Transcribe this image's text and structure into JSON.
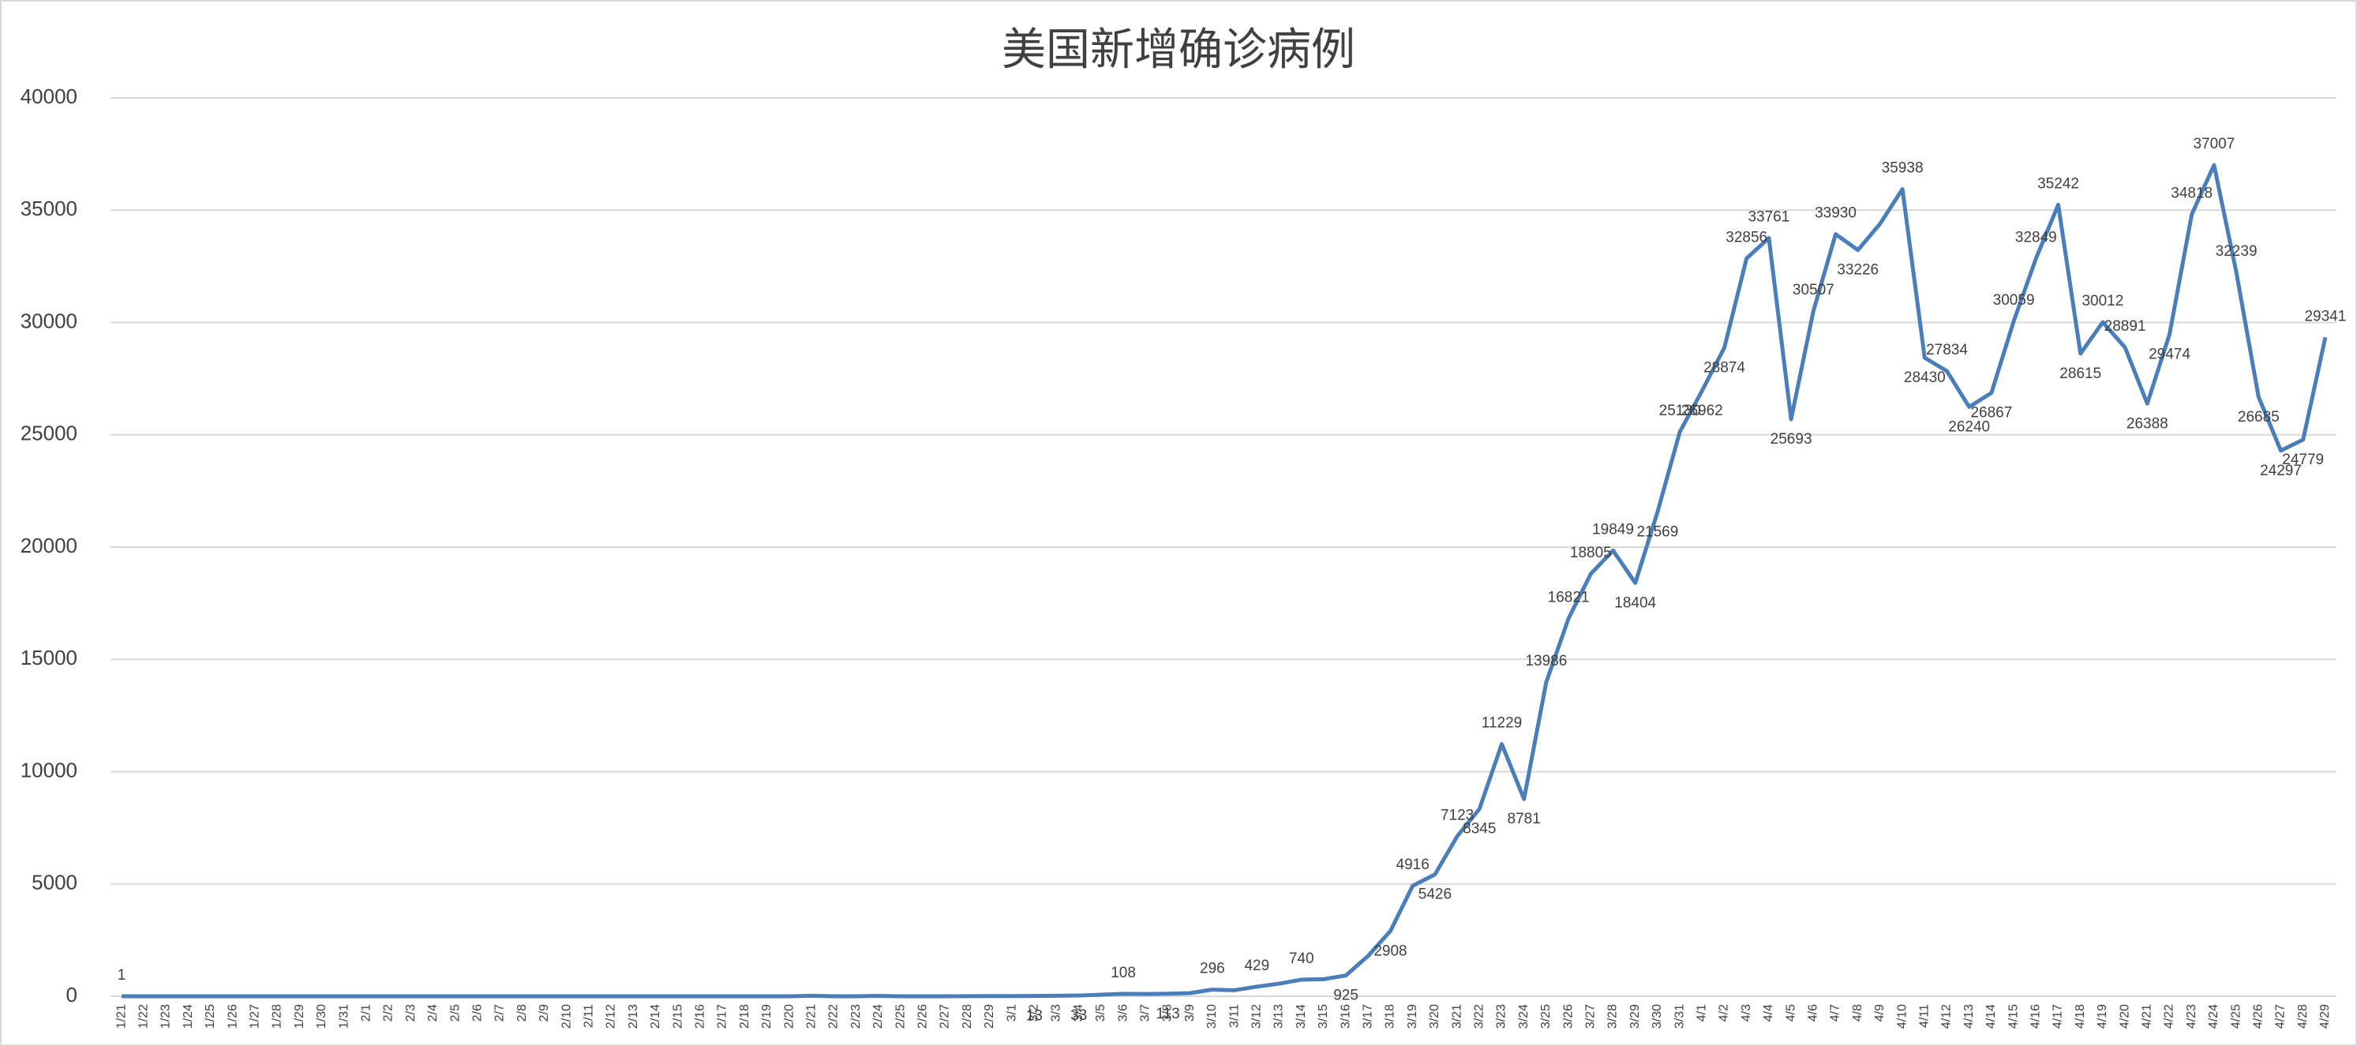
{
  "chart_data": {
    "type": "line",
    "title": "美国新增确诊病例",
    "categories": [
      "1/21",
      "1/22",
      "1/23",
      "1/24",
      "1/25",
      "1/26",
      "1/27",
      "1/28",
      "1/29",
      "1/30",
      "1/31",
      "2/1",
      "2/2",
      "2/3",
      "2/4",
      "2/5",
      "2/6",
      "2/7",
      "2/8",
      "2/9",
      "2/10",
      "2/11",
      "2/12",
      "2/13",
      "2/14",
      "2/15",
      "2/16",
      "2/17",
      "2/18",
      "2/19",
      "2/20",
      "2/21",
      "2/22",
      "2/23",
      "2/24",
      "2/25",
      "2/26",
      "2/27",
      "2/28",
      "2/29",
      "3/1",
      "3/2",
      "3/3",
      "3/4",
      "3/5",
      "3/6",
      "3/7",
      "3/8",
      "3/9",
      "3/10",
      "3/11",
      "3/12",
      "3/13",
      "3/14",
      "3/15",
      "3/16",
      "3/17",
      "3/18",
      "3/19",
      "3/20",
      "3/21",
      "3/22",
      "3/23",
      "3/24",
      "3/25",
      "3/26",
      "3/27",
      "3/28",
      "3/29",
      "3/30",
      "3/31",
      "4/1",
      "4/2",
      "4/3",
      "4/4",
      "4/5",
      "4/6",
      "4/7",
      "4/8",
      "4/9",
      "4/10",
      "4/11",
      "4/12",
      "4/13",
      "4/14",
      "4/15",
      "4/16",
      "4/17",
      "4/18",
      "4/19",
      "4/20",
      "4/21",
      "4/22",
      "4/23",
      "4/24",
      "4/25",
      "4/26",
      "4/27",
      "4/28",
      "4/29"
    ],
    "series": [
      {
        "name": "美国新增确诊病例",
        "color": "#4a7ebb",
        "values": [
          1,
          0,
          0,
          1,
          0,
          1,
          0,
          0,
          0,
          1,
          1,
          1,
          0,
          0,
          0,
          1,
          0,
          0,
          0,
          0,
          0,
          1,
          0,
          0,
          0,
          0,
          0,
          0,
          0,
          0,
          0,
          20,
          0,
          0,
          18,
          0,
          0,
          1,
          3,
          8,
          9,
          13,
          20,
          33,
          70,
          108,
          100,
          113,
          140,
          296,
          270,
          429,
          560,
          740,
          760,
          925,
          1800,
          2908,
          4916,
          5426,
          7123,
          8345,
          11229,
          8781,
          13986,
          16821,
          18805,
          19849,
          18404,
          21569,
          25130,
          26962,
          28874,
          32856,
          33761,
          25693,
          30507,
          33930,
          33226,
          34400,
          35938,
          28430,
          27834,
          26240,
          26867,
          30059,
          32849,
          35242,
          28615,
          30012,
          28891,
          26388,
          29474,
          34818,
          37007,
          32239,
          26685,
          24297,
          24779,
          29341
        ],
        "value_labels": [
          "1",
          null,
          null,
          null,
          null,
          null,
          null,
          null,
          null,
          null,
          null,
          null,
          null,
          null,
          null,
          null,
          null,
          null,
          null,
          null,
          null,
          null,
          null,
          null,
          null,
          null,
          null,
          null,
          null,
          null,
          null,
          null,
          null,
          null,
          null,
          null,
          null,
          null,
          null,
          null,
          null,
          "13",
          null,
          "33",
          null,
          "108",
          null,
          "113",
          null,
          "296",
          null,
          "429",
          null,
          "740",
          null,
          "925",
          null,
          "2908",
          "4916",
          "5426",
          "7123",
          "8345",
          "11229",
          "8781",
          "13986",
          "16821",
          "18805",
          "19849",
          "18404",
          "21569",
          "25130",
          "26962",
          "28874",
          "32856",
          "33761",
          "25693",
          "30507",
          "33930",
          "33226",
          null,
          "35938",
          "28430",
          "27834",
          "26240",
          "26867",
          "30059",
          "32849",
          "35242",
          "28615",
          "30012",
          "28891",
          "26388",
          "29474",
          "34818",
          "37007",
          "32239",
          "26685",
          "24297",
          "24779",
          "29341"
        ]
      }
    ],
    "ylim": [
      0,
      40000
    ],
    "yticks": [
      0,
      5000,
      10000,
      15000,
      20000,
      25000,
      30000,
      35000,
      40000
    ],
    "grid": true
  }
}
